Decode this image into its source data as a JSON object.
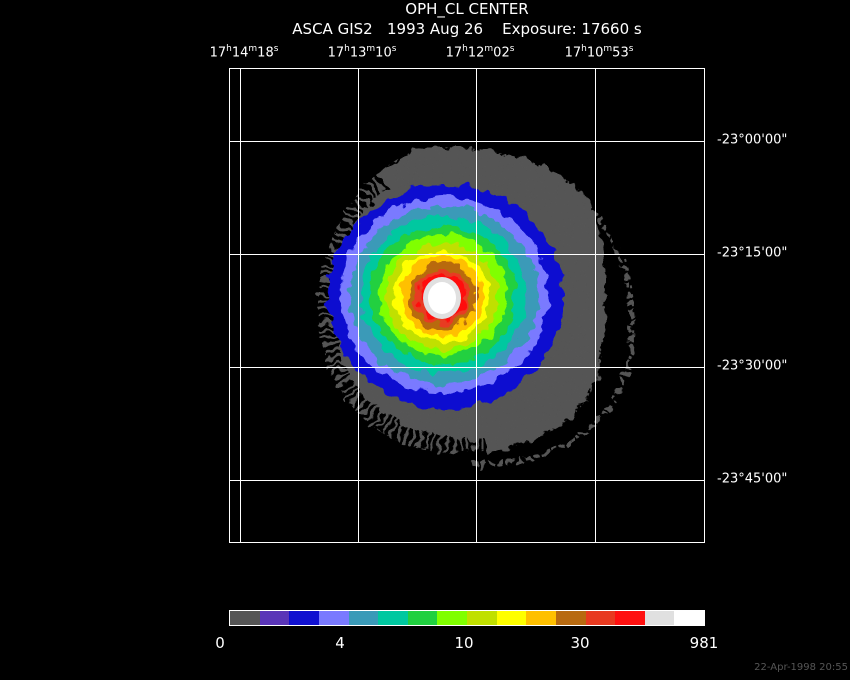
{
  "title": "OPH_CL CENTER",
  "subtitle": "ASCA GIS2   1993 Aug 26    Exposure: 17660 s",
  "ra_labels": [
    {
      "h": "17",
      "m": "14",
      "s": "18"
    },
    {
      "h": "17",
      "m": "13",
      "s": "10"
    },
    {
      "h": "17",
      "m": "12",
      "s": "02"
    },
    {
      "h": "17",
      "m": "10",
      "s": "53"
    }
  ],
  "dec_labels": [
    "-23°00'00\"",
    "-23°15'00\"",
    "-23°30'00\"",
    "-23°45'00\""
  ],
  "colorbar": {
    "colors": [
      "#555555",
      "#5a35b8",
      "#1010d0",
      "#7a7aff",
      "#3a9ab8",
      "#00c8a0",
      "#20d040",
      "#80ff00",
      "#c0e000",
      "#ffff00",
      "#ffc000",
      "#b86a10",
      "#e83a20",
      "#ff1010",
      "#e0e0e0",
      "#ffffff"
    ],
    "labels": [
      "0",
      "4",
      "10",
      "30",
      "981"
    ]
  },
  "timestamp": "22-Apr-1998 20:55"
}
